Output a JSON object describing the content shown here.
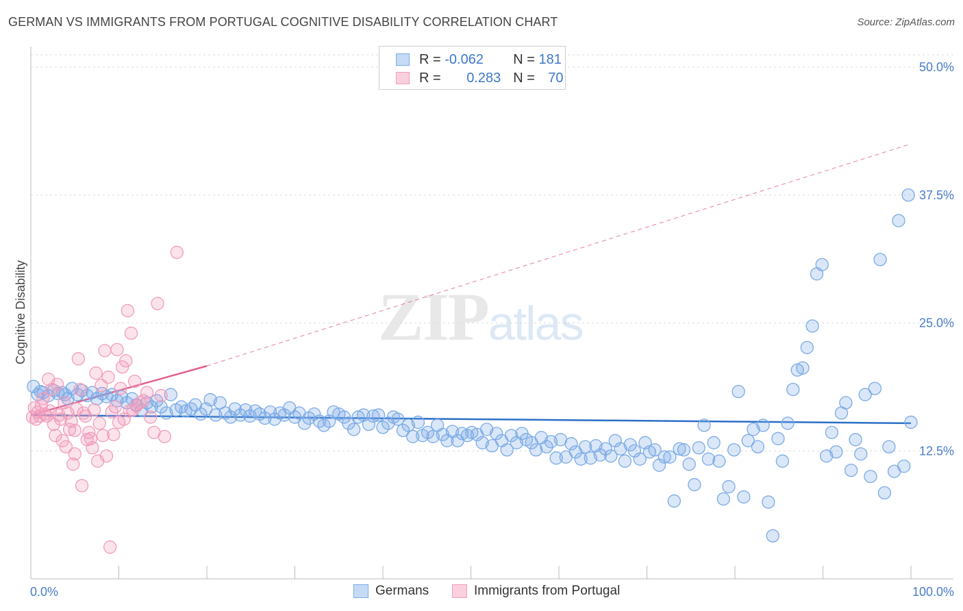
{
  "header": {
    "title": "GERMAN VS IMMIGRANTS FROM PORTUGAL COGNITIVE DISABILITY CORRELATION CHART",
    "source": "Source: ZipAtlas.com"
  },
  "watermark": {
    "zip": "ZIP",
    "atlas": "atlas"
  },
  "legend": {
    "rows": [
      {
        "r_label": "R = ",
        "r_value": "-0.062",
        "n_label": "N = ",
        "n_value": "181",
        "color": "#7aaae6"
      },
      {
        "r_label": "R = ",
        "r_value": "0.283",
        "n_label": "N = ",
        "n_value": "70",
        "color": "#f19cba"
      }
    ]
  },
  "bottom_legend": [
    {
      "label": "Germans",
      "color": "#7aaae6"
    },
    {
      "label": "Immigrants from Portugal",
      "color": "#f19cba"
    }
  ],
  "chart_data": {
    "type": "scatter",
    "title": "GERMAN VS IMMIGRANTS FROM PORTUGAL COGNITIVE DISABILITY CORRELATION CHART",
    "ylabel": "Cognitive Disability",
    "xlabel": "",
    "xlim": [
      0,
      100
    ],
    "ylim": [
      0,
      50
    ],
    "x_tick_labels": [
      "0.0%",
      "100.0%"
    ],
    "y_tick_labels": [
      "12.5%",
      "25.0%",
      "37.5%",
      "50.0%"
    ],
    "y_ticks": [
      12.5,
      25.0,
      37.5,
      50.0
    ],
    "grid": true,
    "legend_position": "top-center",
    "series": [
      {
        "name": "Germans",
        "color": "#7aaae6",
        "trend": {
          "x0": 0,
          "y0": 16.0,
          "x1": 100,
          "y1": 15.2,
          "style": "solid",
          "color": "#2b6fc7"
        },
        "points": [
          [
            0.3,
            18.8
          ],
          [
            0.8,
            18.0
          ],
          [
            1.4,
            18.2
          ],
          [
            2.0,
            17.9
          ],
          [
            2.6,
            18.4
          ],
          [
            3.1,
            18.1
          ],
          [
            3.6,
            18.2
          ],
          [
            4.2,
            17.6
          ],
          [
            4.7,
            18.6
          ],
          [
            5.3,
            18.0
          ],
          [
            5.8,
            18.4
          ],
          [
            6.4,
            17.9
          ],
          [
            7.0,
            18.2
          ],
          [
            7.5,
            17.6
          ],
          [
            8.1,
            18.1
          ],
          [
            8.6,
            17.8
          ],
          [
            9.2,
            18.0
          ],
          [
            9.8,
            17.4
          ],
          [
            10.3,
            17.8
          ],
          [
            10.9,
            17.2
          ],
          [
            11.5,
            17.6
          ],
          [
            12.0,
            17.0
          ],
          [
            12.6,
            16.5
          ],
          [
            13.2,
            17.2
          ],
          [
            13.7,
            16.8
          ],
          [
            14.3,
            17.4
          ],
          [
            14.8,
            16.8
          ],
          [
            15.4,
            16.2
          ],
          [
            15.9,
            18.0
          ],
          [
            16.5,
            16.5
          ],
          [
            17.1,
            16.8
          ],
          [
            17.6,
            16.4
          ],
          [
            18.2,
            16.6
          ],
          [
            18.7,
            17.0
          ],
          [
            19.3,
            16.1
          ],
          [
            19.9,
            16.6
          ],
          [
            20.4,
            17.5
          ],
          [
            21.0,
            16.0
          ],
          [
            21.5,
            17.2
          ],
          [
            22.1,
            16.2
          ],
          [
            22.7,
            15.8
          ],
          [
            23.2,
            16.6
          ],
          [
            23.8,
            16.0
          ],
          [
            24.4,
            16.5
          ],
          [
            24.9,
            15.9
          ],
          [
            25.5,
            16.4
          ],
          [
            26.0,
            16.1
          ],
          [
            26.6,
            15.7
          ],
          [
            27.2,
            16.3
          ],
          [
            27.7,
            15.6
          ],
          [
            28.3,
            16.2
          ],
          [
            28.8,
            16.0
          ],
          [
            29.4,
            16.7
          ],
          [
            30.0,
            15.8
          ],
          [
            30.5,
            16.2
          ],
          [
            31.1,
            15.2
          ],
          [
            31.6,
            15.7
          ],
          [
            32.2,
            16.1
          ],
          [
            32.8,
            15.4
          ],
          [
            33.3,
            15.0
          ],
          [
            33.9,
            15.4
          ],
          [
            34.4,
            16.3
          ],
          [
            35.0,
            16.1
          ],
          [
            35.6,
            15.8
          ],
          [
            36.1,
            15.2
          ],
          [
            36.7,
            14.6
          ],
          [
            37.2,
            15.8
          ],
          [
            37.8,
            16.0
          ],
          [
            38.4,
            15.1
          ],
          [
            38.9,
            15.9
          ],
          [
            39.5,
            16.0
          ],
          [
            40.0,
            14.8
          ],
          [
            40.6,
            15.2
          ],
          [
            41.2,
            15.8
          ],
          [
            41.7,
            15.6
          ],
          [
            42.3,
            14.5
          ],
          [
            42.9,
            15.0
          ],
          [
            43.4,
            13.9
          ],
          [
            44.0,
            15.3
          ],
          [
            44.5,
            14.0
          ],
          [
            45.1,
            14.3
          ],
          [
            45.7,
            13.9
          ],
          [
            46.2,
            15.0
          ],
          [
            46.8,
            14.1
          ],
          [
            47.3,
            13.5
          ],
          [
            47.9,
            14.4
          ],
          [
            48.5,
            13.5
          ],
          [
            49.0,
            14.2
          ],
          [
            49.6,
            14.0
          ],
          [
            50.1,
            14.3
          ],
          [
            50.7,
            14.1
          ],
          [
            51.3,
            13.3
          ],
          [
            51.8,
            14.6
          ],
          [
            52.4,
            13.0
          ],
          [
            52.9,
            14.2
          ],
          [
            53.5,
            13.5
          ],
          [
            54.1,
            12.6
          ],
          [
            54.6,
            14.0
          ],
          [
            55.2,
            13.3
          ],
          [
            55.8,
            14.2
          ],
          [
            56.3,
            13.6
          ],
          [
            56.9,
            13.3
          ],
          [
            57.4,
            12.6
          ],
          [
            58.0,
            13.8
          ],
          [
            58.6,
            12.9
          ],
          [
            59.1,
            13.4
          ],
          [
            59.7,
            11.8
          ],
          [
            60.2,
            13.6
          ],
          [
            60.8,
            11.9
          ],
          [
            61.4,
            13.2
          ],
          [
            61.9,
            12.4
          ],
          [
            62.5,
            11.7
          ],
          [
            63.0,
            12.9
          ],
          [
            63.6,
            11.8
          ],
          [
            64.2,
            13.0
          ],
          [
            64.7,
            12.1
          ],
          [
            65.3,
            12.7
          ],
          [
            65.9,
            12.0
          ],
          [
            66.4,
            13.5
          ],
          [
            67.0,
            12.7
          ],
          [
            67.5,
            11.5
          ],
          [
            68.1,
            13.1
          ],
          [
            68.6,
            12.5
          ],
          [
            69.2,
            11.7
          ],
          [
            69.8,
            13.3
          ],
          [
            70.3,
            12.4
          ],
          [
            70.9,
            12.6
          ],
          [
            71.4,
            11.1
          ],
          [
            72.0,
            11.9
          ],
          [
            72.6,
            11.9
          ],
          [
            73.1,
            7.6
          ],
          [
            73.7,
            12.7
          ],
          [
            74.2,
            12.6
          ],
          [
            74.8,
            11.2
          ],
          [
            75.4,
            9.2
          ],
          [
            75.9,
            12.8
          ],
          [
            76.5,
            15.0
          ],
          [
            77.0,
            11.7
          ],
          [
            77.6,
            13.3
          ],
          [
            78.2,
            11.5
          ],
          [
            78.7,
            7.8
          ],
          [
            79.3,
            9.0
          ],
          [
            79.9,
            12.6
          ],
          [
            80.4,
            18.3
          ],
          [
            81.0,
            8.0
          ],
          [
            81.5,
            13.5
          ],
          [
            82.1,
            14.6
          ],
          [
            82.6,
            12.9
          ],
          [
            83.2,
            15.0
          ],
          [
            83.8,
            7.5
          ],
          [
            84.3,
            4.2
          ],
          [
            84.9,
            13.7
          ],
          [
            85.4,
            11.5
          ],
          [
            86.0,
            15.2
          ],
          [
            86.6,
            18.5
          ],
          [
            87.1,
            20.4
          ],
          [
            87.7,
            20.6
          ],
          [
            88.2,
            22.6
          ],
          [
            88.8,
            24.7
          ],
          [
            89.3,
            29.8
          ],
          [
            89.9,
            30.7
          ],
          [
            90.4,
            12.0
          ],
          [
            91.0,
            14.3
          ],
          [
            91.5,
            12.4
          ],
          [
            92.1,
            16.2
          ],
          [
            92.6,
            17.2
          ],
          [
            93.2,
            10.6
          ],
          [
            93.7,
            13.6
          ],
          [
            94.3,
            12.2
          ],
          [
            94.8,
            18.0
          ],
          [
            95.4,
            10.0
          ],
          [
            95.9,
            18.6
          ],
          [
            96.5,
            31.2
          ],
          [
            97.0,
            8.4
          ],
          [
            97.5,
            12.9
          ],
          [
            98.1,
            10.5
          ],
          [
            98.6,
            35.0
          ],
          [
            99.2,
            11.0
          ],
          [
            99.7,
            37.5
          ],
          [
            100.0,
            15.3
          ],
          [
            1.1,
            18.3
          ],
          [
            3.9,
            18.0
          ]
        ]
      },
      {
        "name": "Immigrants from Portugal",
        "color": "#f19cba",
        "trend": {
          "x0": 0,
          "y0": 16.0,
          "x1": 20,
          "y1": 20.8,
          "style": "solid",
          "ext_x1": 100,
          "ext_y1": 42.5,
          "color": "#e0608c"
        },
        "points": [
          [
            0.2,
            15.8
          ],
          [
            0.4,
            16.7
          ],
          [
            0.6,
            15.6
          ],
          [
            0.8,
            16.3
          ],
          [
            1.0,
            15.9
          ],
          [
            1.2,
            16.9
          ],
          [
            1.4,
            17.6
          ],
          [
            1.6,
            16.1
          ],
          [
            1.8,
            15.9
          ],
          [
            2.0,
            19.5
          ],
          [
            2.2,
            16.4
          ],
          [
            2.4,
            18.5
          ],
          [
            2.6,
            15.1
          ],
          [
            2.8,
            14.0
          ],
          [
            3.0,
            19.0
          ],
          [
            3.2,
            16.0
          ],
          [
            3.4,
            15.6
          ],
          [
            3.6,
            13.5
          ],
          [
            3.8,
            17.2
          ],
          [
            4.0,
            12.9
          ],
          [
            4.2,
            16.2
          ],
          [
            4.4,
            14.6
          ],
          [
            4.6,
            15.4
          ],
          [
            4.8,
            11.2
          ],
          [
            5.0,
            12.2
          ],
          [
            5.2,
            16.6
          ],
          [
            5.4,
            21.5
          ],
          [
            5.6,
            18.5
          ],
          [
            5.8,
            9.1
          ],
          [
            6.0,
            16.2
          ],
          [
            6.2,
            15.9
          ],
          [
            6.4,
            13.6
          ],
          [
            6.6,
            14.3
          ],
          [
            6.8,
            13.7
          ],
          [
            7.0,
            12.8
          ],
          [
            7.2,
            16.5
          ],
          [
            7.4,
            20.1
          ],
          [
            7.6,
            11.5
          ],
          [
            7.8,
            15.2
          ],
          [
            8.0,
            18.9
          ],
          [
            8.2,
            14.0
          ],
          [
            8.4,
            22.3
          ],
          [
            8.6,
            12.0
          ],
          [
            8.8,
            19.7
          ],
          [
            9.0,
            3.1
          ],
          [
            9.2,
            16.3
          ],
          [
            9.4,
            14.1
          ],
          [
            9.6,
            16.8
          ],
          [
            9.8,
            22.4
          ],
          [
            10.0,
            15.3
          ],
          [
            10.2,
            18.6
          ],
          [
            10.4,
            20.7
          ],
          [
            10.6,
            15.6
          ],
          [
            10.8,
            21.3
          ],
          [
            11.0,
            26.2
          ],
          [
            11.2,
            16.4
          ],
          [
            11.4,
            24.0
          ],
          [
            11.6,
            16.5
          ],
          [
            11.8,
            19.3
          ],
          [
            12.0,
            16.9
          ],
          [
            12.4,
            17.2
          ],
          [
            12.8,
            17.4
          ],
          [
            13.2,
            18.2
          ],
          [
            13.6,
            15.8
          ],
          [
            14.0,
            14.3
          ],
          [
            14.4,
            26.9
          ],
          [
            14.8,
            17.9
          ],
          [
            15.2,
            13.9
          ],
          [
            16.6,
            31.9
          ],
          [
            5.0,
            14.5
          ]
        ]
      }
    ]
  }
}
